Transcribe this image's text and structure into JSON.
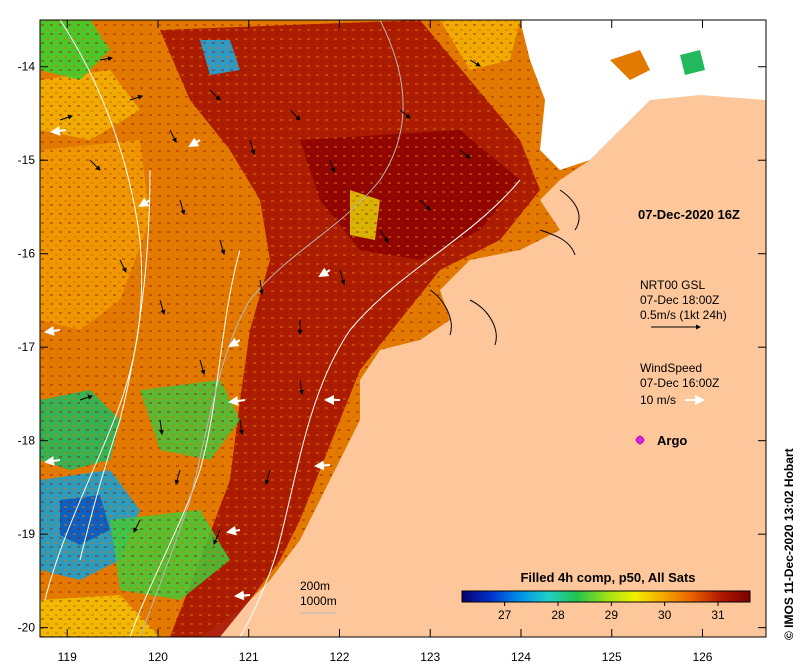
{
  "map": {
    "lon_ticks": [
      "119",
      "120",
      "121",
      "122",
      "123",
      "124",
      "125",
      "126"
    ],
    "lat_ticks": [
      "-14",
      "-15",
      "-16",
      "-17",
      "-18",
      "-19",
      "-20"
    ],
    "lon_range": [
      118.7,
      126.7
    ],
    "lat_range": [
      -20.1,
      -13.5
    ],
    "land_color": "#fdc79b",
    "cloud_color": "#ffffff"
  },
  "annotations": {
    "date_title": "07-Dec-2020 16Z",
    "current_title": "NRT00 GSL",
    "current_time": "07-Dec 18:00Z",
    "current_scale": "0.5m/s (1kt 24h)",
    "wind_title": "WindSpeed",
    "wind_time": "07-Dec 16:00Z",
    "wind_scale": "10 m/s",
    "argo_label": "Argo",
    "depth_200": "200m",
    "depth_1000": "1000m"
  },
  "colorbar": {
    "title": "Filled 4h comp, p50, All Sats",
    "ticks": [
      "27",
      "28",
      "29",
      "30",
      "31"
    ],
    "colors": [
      "#08006a",
      "#0033cc",
      "#0090e8",
      "#20d0c8",
      "#22c44a",
      "#9be018",
      "#f2f000",
      "#f5a800",
      "#e86000",
      "#b01800",
      "#7a0000"
    ]
  },
  "credit": "© IMOS 11-Dec-2020 13:02 Hobart"
}
